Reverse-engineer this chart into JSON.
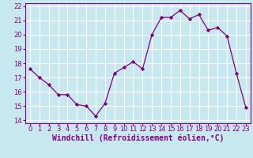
{
  "x": [
    0,
    1,
    2,
    3,
    4,
    5,
    6,
    7,
    8,
    9,
    10,
    11,
    12,
    13,
    14,
    15,
    16,
    17,
    18,
    19,
    20,
    21,
    22,
    23
  ],
  "y": [
    17.6,
    17.0,
    16.5,
    15.8,
    15.8,
    15.1,
    15.0,
    14.3,
    15.2,
    17.3,
    17.7,
    18.1,
    17.6,
    20.0,
    21.2,
    21.2,
    21.7,
    21.1,
    21.4,
    20.3,
    20.5,
    19.9,
    17.3,
    14.9
  ],
  "line_color": "#800080",
  "marker_color": "#800080",
  "bg_color": "#c8e8f0",
  "grid_color": "#ffffff",
  "xlabel": "Windchill (Refroidissement éolien,°C)",
  "xlabel_color": "#800080",
  "tick_color": "#800080",
  "ylim": [
    13.8,
    22.2
  ],
  "xlim": [
    -0.5,
    23.5
  ],
  "yticks": [
    14,
    15,
    16,
    17,
    18,
    19,
    20,
    21,
    22
  ],
  "xticks": [
    0,
    1,
    2,
    3,
    4,
    5,
    6,
    7,
    8,
    9,
    10,
    11,
    12,
    13,
    14,
    15,
    16,
    17,
    18,
    19,
    20,
    21,
    22,
    23
  ],
  "tick_fontsize": 6.0,
  "ylabel_fontsize": 6.5,
  "xlabel_fontsize": 7.0
}
